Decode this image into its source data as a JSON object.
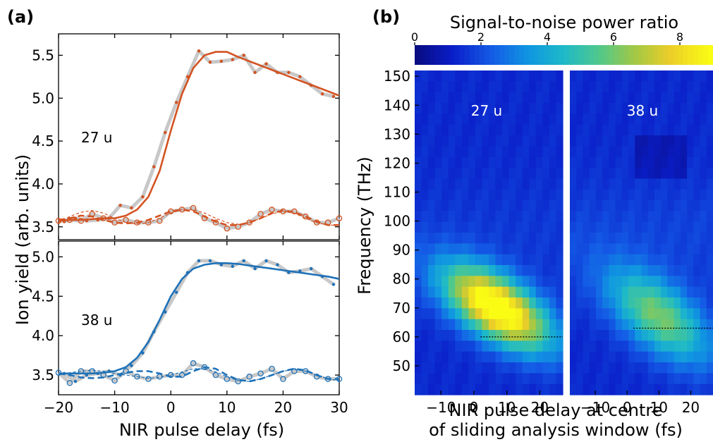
{
  "panel_a": {
    "label": "(a)",
    "ylabel": "Ion yield (arb. units)",
    "xlabel": "NIR pulse delay (fs)",
    "top_annotation": "27 u",
    "bottom_annotation": "38 u",
    "x_ticks": [
      "−20",
      "−10",
      "0",
      "10",
      "20",
      "30"
    ],
    "top_y_ticks": [
      "3.5",
      "4.0",
      "4.5",
      "5.0",
      "5.5"
    ],
    "bottom_y_ticks": [
      "3.5",
      "4.0",
      "4.5",
      "5.0"
    ]
  },
  "panel_b": {
    "label": "(b)",
    "colorbar_title": "Signal-to-noise power ratio",
    "colorbar_ticks": [
      "0",
      "2",
      "4",
      "6",
      "8"
    ],
    "ylabel": "Frequency (THz)",
    "xlabel_line1": "NIR pulse delay at centre",
    "xlabel_line2": "of sliding analysis window (fs)",
    "left_annotation": "27 u",
    "right_annotation": "38 u",
    "y_ticks": [
      "150",
      "140",
      "130",
      "120",
      "110",
      "100",
      "90",
      "80",
      "70",
      "60",
      "50"
    ],
    "x_ticks_left": [
      "−10",
      "0",
      "10",
      "20"
    ],
    "x_ticks_right": [
      "−10",
      "0",
      "10",
      "20"
    ]
  },
  "colors": {
    "orange": "#d35322",
    "blue": "#1f72b8",
    "gray": "#c8c8c8"
  },
  "chart_data": [
    {
      "type": "line",
      "panel": "a-top",
      "annotation": "27 u",
      "xlim": [
        -20,
        30
      ],
      "ylim": [
        3.35,
        5.75
      ],
      "series": [
        {
          "x": [
            -20,
            -18,
            -16,
            -14,
            -12,
            -10,
            -8,
            -6,
            -4,
            -2,
            0,
            2,
            4,
            6,
            8,
            10,
            12,
            14,
            16,
            18,
            20,
            22,
            24,
            26,
            28,
            30
          ],
          "values": [
            3.57,
            3.58,
            3.58,
            3.59,
            3.6,
            3.6,
            3.63,
            3.7,
            3.85,
            4.15,
            4.62,
            5.05,
            5.35,
            5.5,
            5.54,
            5.54,
            5.48,
            5.43,
            5.38,
            5.33,
            5.28,
            5.23,
            5.18,
            5.13,
            5.08,
            5.03
          ]
        },
        {
          "x": [
            -19,
            -17,
            -15,
            -13,
            -11,
            -9,
            -7,
            -5,
            -3,
            -1,
            1,
            3,
            5,
            7,
            9,
            11,
            13,
            15,
            17,
            19,
            21,
            23,
            25,
            27,
            29
          ],
          "values": [
            3.56,
            3.6,
            3.57,
            3.58,
            3.6,
            3.75,
            3.72,
            3.85,
            4.2,
            4.6,
            4.95,
            5.25,
            5.55,
            5.42,
            5.43,
            5.45,
            5.5,
            5.3,
            5.4,
            5.3,
            5.3,
            5.25,
            5.15,
            5.05,
            5.02
          ]
        },
        {
          "x": [
            -20,
            -18,
            -16,
            -14,
            -12,
            -10,
            -8,
            -6,
            -4,
            -2,
            0,
            2,
            4,
            6,
            8,
            10,
            12,
            14,
            16,
            18,
            20,
            22,
            24,
            26,
            28,
            30
          ],
          "values": [
            3.58,
            3.6,
            3.63,
            3.62,
            3.58,
            3.55,
            3.54,
            3.55,
            3.58,
            3.63,
            3.68,
            3.7,
            3.68,
            3.62,
            3.56,
            3.52,
            3.52,
            3.55,
            3.6,
            3.66,
            3.69,
            3.67,
            3.62,
            3.56,
            3.52,
            3.52
          ]
        },
        {
          "x": [
            -20,
            -18,
            -16,
            -14,
            -12,
            -10,
            -8,
            -6,
            -4,
            -2,
            0,
            2,
            4,
            6,
            8,
            10,
            12,
            14,
            16,
            18,
            20,
            22,
            24,
            26,
            28,
            30
          ],
          "values": [
            3.57,
            3.58,
            3.57,
            3.65,
            3.6,
            3.55,
            3.58,
            3.55,
            3.55,
            3.57,
            3.68,
            3.7,
            3.72,
            3.6,
            3.55,
            3.48,
            3.5,
            3.55,
            3.65,
            3.7,
            3.68,
            3.68,
            3.62,
            3.55,
            3.55,
            3.6
          ]
        },
        {
          "x": [
            -20,
            -18,
            -16,
            -14,
            -12,
            -10,
            -8,
            -6,
            -4,
            -2,
            0,
            2,
            4,
            6,
            8,
            10,
            12,
            14,
            16,
            18,
            20,
            22,
            24,
            26,
            28,
            30
          ],
          "values": [
            3.55,
            3.62,
            3.67,
            3.69,
            3.66,
            3.6,
            3.55,
            3.53,
            3.55,
            3.6,
            3.66,
            3.7,
            3.7,
            3.66,
            3.6,
            3.55,
            3.53,
            3.55,
            3.6,
            3.65,
            3.68,
            3.66,
            3.6,
            3.55,
            3.52,
            3.52
          ]
        }
      ]
    },
    {
      "type": "line",
      "panel": "a-bottom",
      "annotation": "38 u",
      "xlim": [
        -20,
        30
      ],
      "ylim": [
        3.25,
        5.2
      ],
      "series": [
        {
          "x": [
            -20,
            -18,
            -16,
            -14,
            -12,
            -10,
            -8,
            -6,
            -4,
            -2,
            0,
            2,
            4,
            6,
            8,
            10,
            12,
            14,
            16,
            18,
            20,
            22,
            24,
            26,
            28,
            30
          ],
          "values": [
            3.52,
            3.52,
            3.52,
            3.52,
            3.53,
            3.55,
            3.6,
            3.72,
            3.92,
            4.2,
            4.5,
            4.72,
            4.85,
            4.9,
            4.92,
            4.92,
            4.91,
            4.89,
            4.87,
            4.85,
            4.83,
            4.81,
            4.79,
            4.77,
            4.75,
            4.72
          ]
        },
        {
          "x": [
            -19,
            -17,
            -15,
            -13,
            -11,
            -9,
            -7,
            -5,
            -3,
            -1,
            1,
            3,
            5,
            7,
            9,
            11,
            13,
            15,
            17,
            19,
            21,
            23,
            25,
            27,
            29
          ],
          "values": [
            3.52,
            3.42,
            3.5,
            3.52,
            3.55,
            3.5,
            3.62,
            3.78,
            4.05,
            4.3,
            4.55,
            4.8,
            4.95,
            4.95,
            4.9,
            4.88,
            4.95,
            4.85,
            4.95,
            4.9,
            4.8,
            4.82,
            4.85,
            4.75,
            4.65
          ]
        },
        {
          "x": [
            -20,
            -18,
            -16,
            -14,
            -12,
            -10,
            -8,
            -6,
            -4,
            -2,
            0,
            2,
            4,
            6,
            8,
            10,
            12,
            14,
            16,
            18,
            20,
            22,
            24,
            26,
            28,
            30
          ],
          "values": [
            3.52,
            3.5,
            3.47,
            3.46,
            3.47,
            3.5,
            3.53,
            3.55,
            3.55,
            3.52,
            3.48,
            3.48,
            3.55,
            3.6,
            3.58,
            3.5,
            3.44,
            3.42,
            3.45,
            3.5,
            3.55,
            3.58,
            3.56,
            3.5,
            3.45,
            3.45
          ]
        },
        {
          "x": [
            -20,
            -18,
            -16,
            -14,
            -12,
            -10,
            -8,
            -6,
            -4,
            -2,
            0,
            2,
            4,
            6,
            8,
            10,
            12,
            14,
            16,
            18,
            20,
            22,
            24,
            26,
            28,
            30
          ],
          "values": [
            3.53,
            3.4,
            3.55,
            3.55,
            3.5,
            3.43,
            3.55,
            3.48,
            3.45,
            3.48,
            3.5,
            3.5,
            3.65,
            3.6,
            3.5,
            3.45,
            3.42,
            3.48,
            3.52,
            3.58,
            3.45,
            3.55,
            3.55,
            3.48,
            3.45,
            3.45
          ]
        },
        {
          "x": [
            -20,
            -18,
            -16,
            -14,
            -12,
            -10,
            -8,
            -6,
            -4,
            -2,
            0,
            2,
            4,
            6,
            8,
            10,
            12,
            14,
            16,
            18,
            20,
            22,
            24,
            26,
            28,
            30
          ],
          "values": [
            3.5,
            3.53,
            3.55,
            3.56,
            3.55,
            3.52,
            3.5,
            3.48,
            3.46,
            3.47,
            3.5,
            3.54,
            3.58,
            3.58,
            3.54,
            3.48,
            3.43,
            3.42,
            3.45,
            3.5,
            3.55,
            3.57,
            3.55,
            3.5,
            3.45,
            3.43
          ]
        }
      ]
    },
    {
      "type": "heatmap",
      "panel": "b",
      "colorbar_range": [
        0,
        9
      ],
      "ylim": [
        40,
        152
      ],
      "xlim": [
        -18,
        27
      ],
      "maps": [
        {
          "annotation": "27 u",
          "peak": [
            7,
            70
          ],
          "spread": [
            9,
            8
          ],
          "amplitude": 8.8,
          "base": 1.3,
          "dotted_line_y": 60,
          "dotted_line_x": [
            2,
            27
          ]
        },
        {
          "annotation": "38 u",
          "peak": [
            10,
            67
          ],
          "spread": [
            9,
            9
          ],
          "amplitude": 4.8,
          "base": 1.3,
          "dotted_line_y": 63,
          "dotted_line_x": [
            2,
            27
          ]
        }
      ]
    }
  ]
}
